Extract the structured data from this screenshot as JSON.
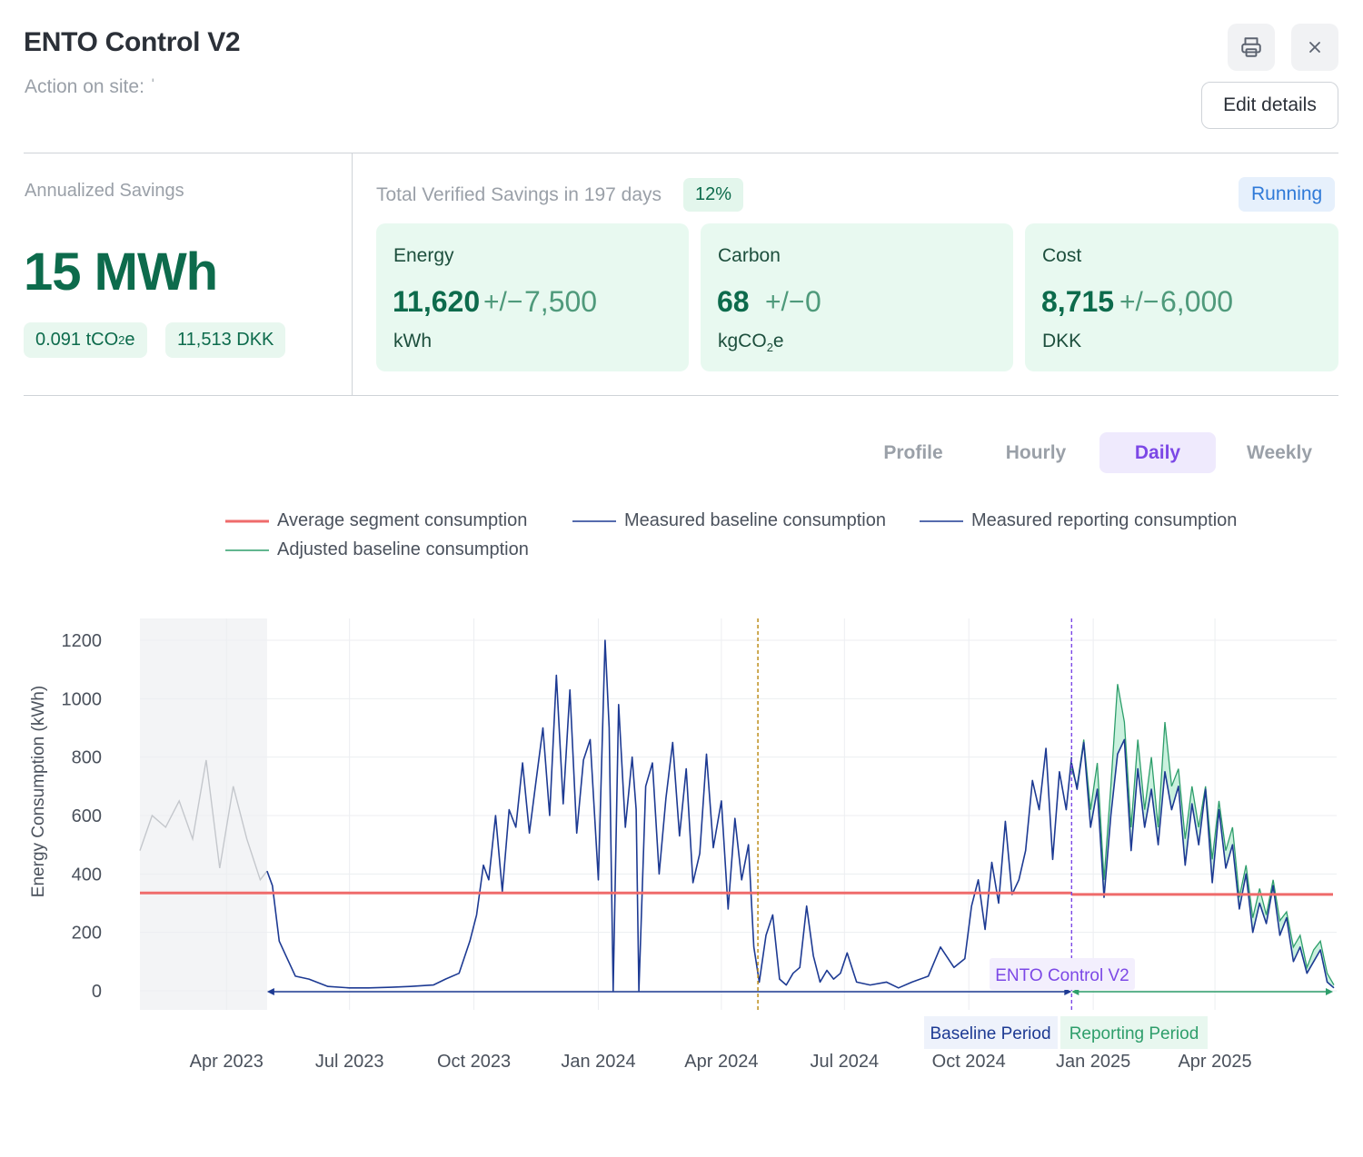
{
  "header": {
    "title": "ENTO Control V2",
    "subtitle": "Action on site: ˈ",
    "edit_label": "Edit details"
  },
  "annualized": {
    "label": "Annualized Savings",
    "value": "15 MWh",
    "carbon_prefix": "0.091 tCO",
    "carbon_sub": "2",
    "carbon_suffix": "e",
    "cost": "11,513 DKK"
  },
  "verified": {
    "label": "Total Verified Savings in 197 days",
    "percent": "12%",
    "status": "Running",
    "cards": [
      {
        "title": "Energy",
        "value": "11,620",
        "pm": "+/−",
        "tolerance": "7,500",
        "unit": "kWh"
      },
      {
        "title": "Carbon",
        "value": "68",
        "pm": "+/−",
        "tolerance": "0",
        "unit_prefix": "kgCO",
        "unit_sub": "2",
        "unit_suffix": "e"
      },
      {
        "title": "Cost",
        "value": "8,715",
        "pm": "+/−",
        "tolerance": "6,000",
        "unit": "DKK"
      }
    ]
  },
  "tabs": [
    "Profile",
    "Hourly",
    "Daily",
    "Weekly"
  ],
  "active_tab": "Daily",
  "colors": {
    "average": "#ef6b6b",
    "baseline": "#1d3a93",
    "reporting": "#1d3a93",
    "adjusted": "#2e9e6b",
    "excluded": "#c4c7cc",
    "marker_action": "#7c48e6",
    "marker_split": "#b8860b"
  },
  "chart_data": {
    "type": "line",
    "ylabel": "Energy Consumption (kWh)",
    "yticks": [
      0,
      200,
      400,
      600,
      800,
      1000,
      1200
    ],
    "ylim": [
      0,
      1250
    ],
    "xticks": [
      "Apr 2023",
      "Jul 2023",
      "Oct 2023",
      "Jan 2024",
      "Apr 2024",
      "Jul 2024",
      "Oct 2024",
      "Jan 2025",
      "Apr 2025"
    ],
    "xlim": [
      "2023-01-27",
      "2025-06-30"
    ],
    "grid": true,
    "legend_position": "top",
    "legend": [
      "Average segment consumption",
      "Measured baseline consumption",
      "Measured reporting consumption",
      "Adjusted baseline consumption"
    ],
    "average_segment_consumption": 335,
    "average_segment_after_action": 330,
    "excluded_period": {
      "start": "2023-01-27",
      "end": "2023-05-01"
    },
    "baseline_period": {
      "start": "2023-05-01",
      "end": "2024-12-16",
      "label": "Baseline Period"
    },
    "reporting_period": {
      "start": "2024-12-16",
      "end": "2025-06-30",
      "label": "Reporting Period"
    },
    "action": {
      "date": "2024-12-16",
      "label": "ENTO Control V2"
    },
    "split_marker": "2024-04-28",
    "series": [
      {
        "name": "Measured baseline consumption",
        "x": [
          "2023-01-27",
          "2023-02-05",
          "2023-02-15",
          "2023-02-25",
          "2023-03-07",
          "2023-03-17",
          "2023-03-27",
          "2023-04-06",
          "2023-04-16",
          "2023-04-26",
          "2023-05-01",
          "2023-05-05",
          "2023-05-10",
          "2023-05-15",
          "2023-05-22",
          "2023-06-01",
          "2023-06-15",
          "2023-07-01",
          "2023-07-15",
          "2023-08-01",
          "2023-08-15",
          "2023-09-01",
          "2023-09-10",
          "2023-09-20",
          "2023-09-28",
          "2023-10-03",
          "2023-10-08",
          "2023-10-12",
          "2023-10-17",
          "2023-10-22",
          "2023-10-27",
          "2023-11-01",
          "2023-11-06",
          "2023-11-11",
          "2023-11-16",
          "2023-11-21",
          "2023-11-26",
          "2023-12-01",
          "2023-12-06",
          "2023-12-11",
          "2023-12-16",
          "2023-12-21",
          "2023-12-26",
          "2024-01-01",
          "2024-01-06",
          "2024-01-09",
          "2024-01-12",
          "2024-01-16",
          "2024-01-21",
          "2024-01-26",
          "2024-01-29",
          "2024-01-31",
          "2024-02-05",
          "2024-02-10",
          "2024-02-15",
          "2024-02-20",
          "2024-02-25",
          "2024-03-01",
          "2024-03-06",
          "2024-03-11",
          "2024-03-16",
          "2024-03-21",
          "2024-03-26",
          "2024-04-01",
          "2024-04-06",
          "2024-04-11",
          "2024-04-16",
          "2024-04-21",
          "2024-04-25",
          "2024-04-29",
          "2024-05-04",
          "2024-05-09",
          "2024-05-14",
          "2024-05-19",
          "2024-05-24",
          "2024-05-29",
          "2024-06-03",
          "2024-06-08",
          "2024-06-13",
          "2024-06-18",
          "2024-06-23",
          "2024-06-28",
          "2024-07-03",
          "2024-07-10",
          "2024-07-20",
          "2024-08-01",
          "2024-08-10",
          "2024-08-20",
          "2024-09-01",
          "2024-09-10",
          "2024-09-20",
          "2024-09-28",
          "2024-10-03",
          "2024-10-08",
          "2024-10-13",
          "2024-10-18",
          "2024-10-23",
          "2024-10-28",
          "2024-11-02",
          "2024-11-07",
          "2024-11-12",
          "2024-11-17",
          "2024-11-22",
          "2024-11-27",
          "2024-12-02",
          "2024-12-07",
          "2024-12-12",
          "2024-12-16"
        ],
        "y": [
          480,
          600,
          560,
          650,
          520,
          790,
          420,
          700,
          520,
          380,
          410,
          360,
          170,
          120,
          50,
          40,
          15,
          10,
          10,
          12,
          15,
          20,
          40,
          60,
          170,
          260,
          430,
          380,
          600,
          340,
          620,
          560,
          780,
          540,
          720,
          900,
          600,
          1080,
          640,
          1030,
          540,
          790,
          860,
          380,
          1200,
          900,
          0,
          980,
          560,
          800,
          620,
          0,
          700,
          780,
          400,
          660,
          850,
          530,
          760,
          370,
          470,
          810,
          490,
          650,
          280,
          590,
          380,
          500,
          150,
          30,
          190,
          260,
          40,
          20,
          60,
          80,
          290,
          120,
          30,
          70,
          40,
          60,
          130,
          30,
          20,
          30,
          10,
          30,
          50,
          150,
          80,
          110,
          290,
          380,
          210,
          440,
          300,
          580,
          330,
          380,
          480,
          720,
          620,
          830,
          450,
          750,
          620,
          800
        ]
      },
      {
        "name": "Measured reporting consumption",
        "x": [
          "2024-12-16",
          "2024-12-20",
          "2024-12-25",
          "2024-12-30",
          "2025-01-04",
          "2025-01-09",
          "2025-01-14",
          "2025-01-19",
          "2025-01-24",
          "2025-01-29",
          "2025-02-03",
          "2025-02-08",
          "2025-02-13",
          "2025-02-18",
          "2025-02-23",
          "2025-02-28",
          "2025-03-05",
          "2025-03-10",
          "2025-03-15",
          "2025-03-20",
          "2025-03-25",
          "2025-03-30",
          "2025-04-04",
          "2025-04-09",
          "2025-04-14",
          "2025-04-19",
          "2025-04-24",
          "2025-04-29",
          "2025-05-04",
          "2025-05-09",
          "2025-05-14",
          "2025-05-19",
          "2025-05-24",
          "2025-05-29",
          "2025-06-03",
          "2025-06-08",
          "2025-06-13",
          "2025-06-18",
          "2025-06-23",
          "2025-06-28"
        ],
        "y": [
          780,
          690,
          850,
          560,
          690,
          320,
          600,
          810,
          860,
          480,
          760,
          560,
          690,
          500,
          750,
          620,
          700,
          430,
          640,
          500,
          690,
          370,
          620,
          420,
          500,
          280,
          400,
          200,
          300,
          230,
          360,
          190,
          250,
          100,
          150,
          60,
          100,
          140,
          30,
          10
        ]
      },
      {
        "name": "Adjusted baseline consumption",
        "x": [
          "2024-12-16",
          "2024-12-20",
          "2024-12-25",
          "2024-12-30",
          "2025-01-04",
          "2025-01-09",
          "2025-01-14",
          "2025-01-19",
          "2025-01-24",
          "2025-01-29",
          "2025-02-03",
          "2025-02-08",
          "2025-02-13",
          "2025-02-18",
          "2025-02-23",
          "2025-02-28",
          "2025-03-05",
          "2025-03-10",
          "2025-03-15",
          "2025-03-20",
          "2025-03-25",
          "2025-03-30",
          "2025-04-04",
          "2025-04-09",
          "2025-04-14",
          "2025-04-19",
          "2025-04-24",
          "2025-04-29",
          "2025-05-04",
          "2025-05-09",
          "2025-05-14",
          "2025-05-19",
          "2025-05-24",
          "2025-05-29",
          "2025-06-03",
          "2025-06-08",
          "2025-06-13",
          "2025-06-18",
          "2025-06-23",
          "2025-06-28"
        ],
        "y": [
          760,
          700,
          860,
          620,
          780,
          380,
          700,
          1050,
          920,
          560,
          860,
          620,
          800,
          560,
          920,
          700,
          760,
          520,
          700,
          560,
          700,
          450,
          650,
          480,
          560,
          320,
          430,
          250,
          350,
          260,
          380,
          240,
          270,
          150,
          190,
          80,
          140,
          170,
          60,
          20
        ]
      }
    ]
  }
}
